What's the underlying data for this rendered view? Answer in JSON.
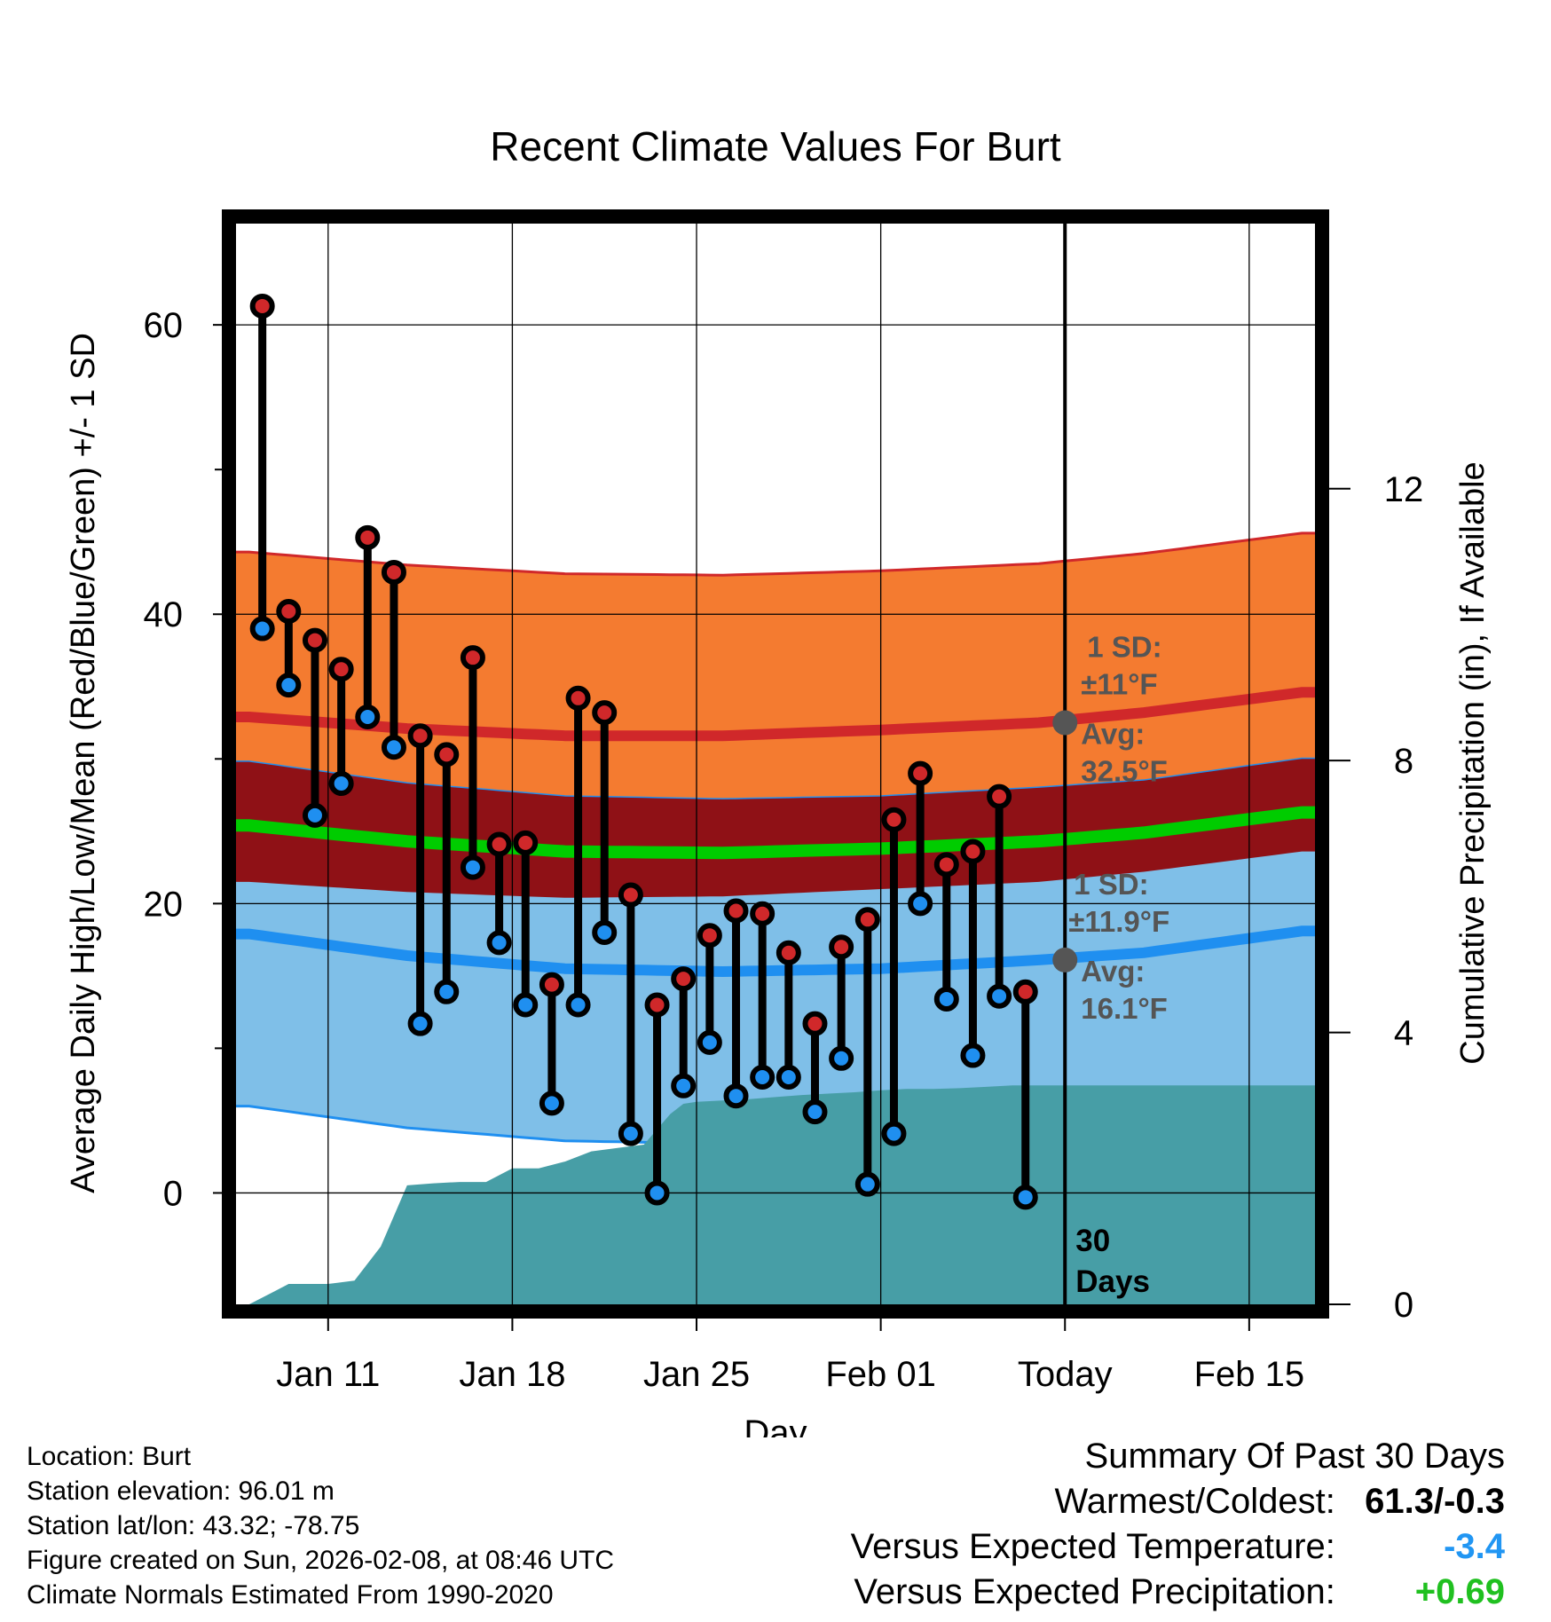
{
  "chart_data": {
    "type": "bar",
    "title": "Recent Climate Values For Burt",
    "xlabel": "Day",
    "ylabel": "Average Daily High/Low/Mean (Red/Blue/Green) +/- 1 SD",
    "y2label": "Cumulative Precipitation (in), If Available",
    "x_range_days": [
      -30.5,
      10.5
    ],
    "ylim": [
      -7.7,
      67
    ],
    "y2lim": [
      0,
      15.9
    ],
    "yticks": [
      0,
      20,
      40,
      60
    ],
    "y2ticks": [
      0,
      4,
      8,
      12
    ],
    "xticks": [
      {
        "day": -27,
        "label": "Jan 11"
      },
      {
        "day": -20,
        "label": "Jan 18"
      },
      {
        "day": -13,
        "label": "Jan 25"
      },
      {
        "day": -6,
        "label": "Feb 01"
      },
      {
        "day": 1,
        "label": "Today"
      },
      {
        "day": 8,
        "label": "Feb 15"
      }
    ],
    "today_day": 1,
    "series": [
      {
        "name": "High",
        "color": "#d0282a",
        "values": [
          61.3,
          40.2,
          38.2,
          36.2,
          45.3,
          42.9,
          31.6,
          30.3,
          37.0,
          24.1,
          24.2,
          14.4,
          34.2,
          33.2,
          20.6,
          13.0,
          14.8,
          17.8,
          19.5,
          19.3,
          16.6,
          11.7,
          17.0,
          18.9,
          25.8,
          29.0,
          22.7,
          23.6,
          27.4,
          13.9
        ]
      },
      {
        "name": "Low",
        "color": "#1f8ff0",
        "values": [
          39.0,
          35.1,
          26.1,
          28.3,
          32.9,
          30.8,
          11.7,
          13.9,
          22.5,
          17.3,
          13.0,
          6.2,
          13.0,
          18.0,
          4.1,
          0.0,
          7.4,
          10.4,
          6.7,
          8.0,
          8.0,
          5.6,
          9.3,
          0.6,
          4.1,
          20.0,
          13.4,
          9.5,
          13.6,
          -0.3
        ]
      }
    ],
    "normals": {
      "days": [
        -30,
        -24,
        -18,
        -12,
        -6,
        0,
        4,
        10
      ],
      "high_avg": [
        32.9,
        32.1,
        31.6,
        31.6,
        32.0,
        32.5,
        33.2,
        34.6
      ],
      "high_sd": [
        11.4,
        11.3,
        11.2,
        11.1,
        11.0,
        11.0,
        11.0,
        11.0
      ],
      "low_avg": [
        17.9,
        16.4,
        15.5,
        15.3,
        15.5,
        16.1,
        16.6,
        18.1
      ],
      "low_sd": [
        11.9,
        11.9,
        11.9,
        11.9,
        11.9,
        11.9,
        11.9,
        11.9
      ],
      "mean_avg": [
        25.4,
        24.3,
        23.6,
        23.5,
        23.8,
        24.3,
        24.9,
        26.3
      ]
    },
    "precip": {
      "days": [
        -30.5,
        -30,
        -29,
        -28.5,
        -27,
        -26,
        -25,
        -24,
        -23,
        -22,
        -21,
        -20,
        -19,
        -18,
        -17,
        -16,
        -15,
        -14,
        -13.5,
        -13,
        -12,
        -11,
        -10,
        -9,
        -8,
        -7,
        -6,
        -5,
        -4,
        -3,
        -2,
        -1,
        0,
        10.5
      ],
      "values": [
        0.0,
        0.0,
        0.2,
        0.3,
        0.3,
        0.35,
        0.85,
        1.75,
        1.78,
        1.8,
        1.8,
        2.0,
        2.0,
        2.1,
        2.25,
        2.3,
        2.35,
        2.8,
        2.95,
        2.98,
        3.0,
        3.02,
        3.05,
        3.08,
        3.1,
        3.12,
        3.15,
        3.17,
        3.17,
        3.18,
        3.2,
        3.22,
        3.22,
        3.22
      ]
    },
    "annotations": {
      "high": {
        "sd": "1 SD:",
        "pm": "±11°F",
        "avg": "Avg:",
        "avgval": "32.5°F"
      },
      "low": {
        "sd": "1 SD:",
        "pm": "±11.9°F",
        "avg": "Avg:",
        "avgval": "16.1°F"
      },
      "window_a": "30",
      "window_b": "Days"
    },
    "colors": {
      "high_band": "#f47b30",
      "high_line": "#d0282a",
      "low_band": "#7fbfe8",
      "low_line": "#1f8ff0",
      "overlap": "#8f1116",
      "mean_line": "#00cc00",
      "precip": "#479ea6",
      "annotation": "#555555",
      "marker_outline": "#000000"
    }
  },
  "footer": {
    "location": "Location: Burt",
    "elevation": "Station elevation: 96.01 m",
    "latlon": "Station lat/lon: 43.32; -78.75",
    "created": "Figure created on Sun, 2026-02-08, at 08:46 UTC",
    "normals": "Climate Normals Estimated From 1990-2020"
  },
  "summary": {
    "title": "Summary Of Past 30 Days",
    "warmest_label": "Warmest/Coldest:",
    "warmest_value": "61.3/-0.3",
    "temp_label": "Versus Expected Temperature:",
    "temp_value": "-3.4",
    "temp_color": "#2196f3",
    "precip_label": "Versus Expected Precipitation:",
    "precip_value": "+0.69",
    "precip_color": "#20c020"
  }
}
